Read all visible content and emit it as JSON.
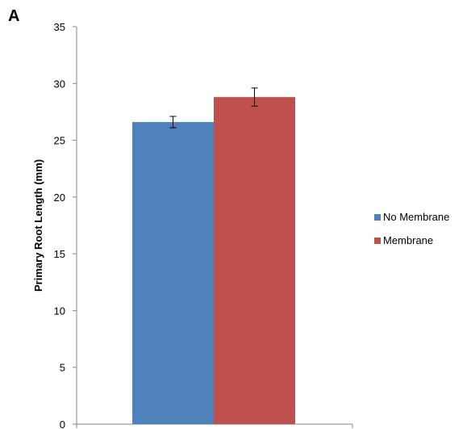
{
  "panel_label": "A",
  "chart_data": {
    "type": "bar",
    "categories": [
      ""
    ],
    "series": [
      {
        "name": "No Membrane",
        "values": [
          26.6
        ],
        "error": [
          0.5
        ],
        "color": "#4F81BD"
      },
      {
        "name": "Membrane",
        "values": [
          28.8
        ],
        "error": [
          0.8
        ],
        "color": "#C0504D"
      }
    ],
    "title": "",
    "xlabel": "",
    "ylabel": "Primary Root Length (mm)",
    "ylim": [
      0,
      35
    ],
    "yticks": [
      "0",
      "5",
      "10",
      "15",
      "20",
      "25",
      "30",
      "35"
    ],
    "grid": false,
    "legend_position": "right"
  }
}
